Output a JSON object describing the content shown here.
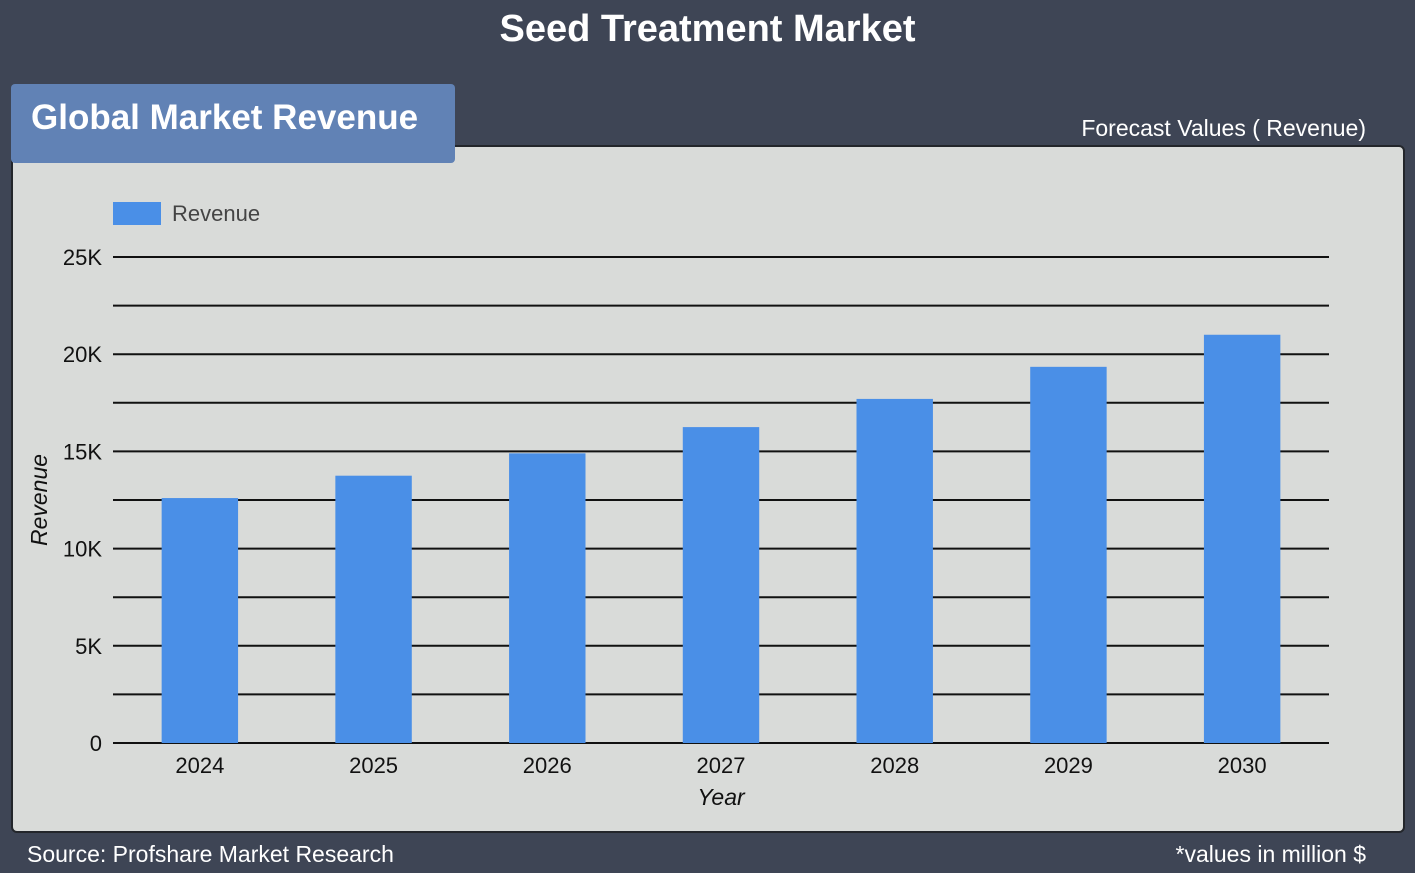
{
  "header": {
    "title": "Seed Treatment Market"
  },
  "section": {
    "tab_label": "Global Market Revenue",
    "forecast_label": "Forecast Values ( Revenue)"
  },
  "footer": {
    "source": "Source: Profshare Market Research",
    "note": "*values in million $"
  },
  "colors": {
    "background": "#3e4555",
    "tab": "#6182b5",
    "panel": "#d9dbd9",
    "bar": "#4a8fe7",
    "gridline": "#111111"
  },
  "chart_data": {
    "type": "bar",
    "categories": [
      "2024",
      "2025",
      "2026",
      "2027",
      "2028",
      "2029",
      "2030"
    ],
    "series": [
      {
        "name": "Revenue",
        "values": [
          12600,
          13750,
          14900,
          16250,
          17700,
          19350,
          21000
        ]
      }
    ],
    "xlabel": "Year",
    "ylabel": "Revenue",
    "ylim": [
      0,
      25000
    ],
    "yticks": [
      0,
      5000,
      10000,
      15000,
      20000,
      25000
    ],
    "ytick_labels": [
      "0",
      "5K",
      "10K",
      "15K",
      "20K",
      "25K"
    ],
    "grid": true,
    "legend_position": "top-left"
  }
}
